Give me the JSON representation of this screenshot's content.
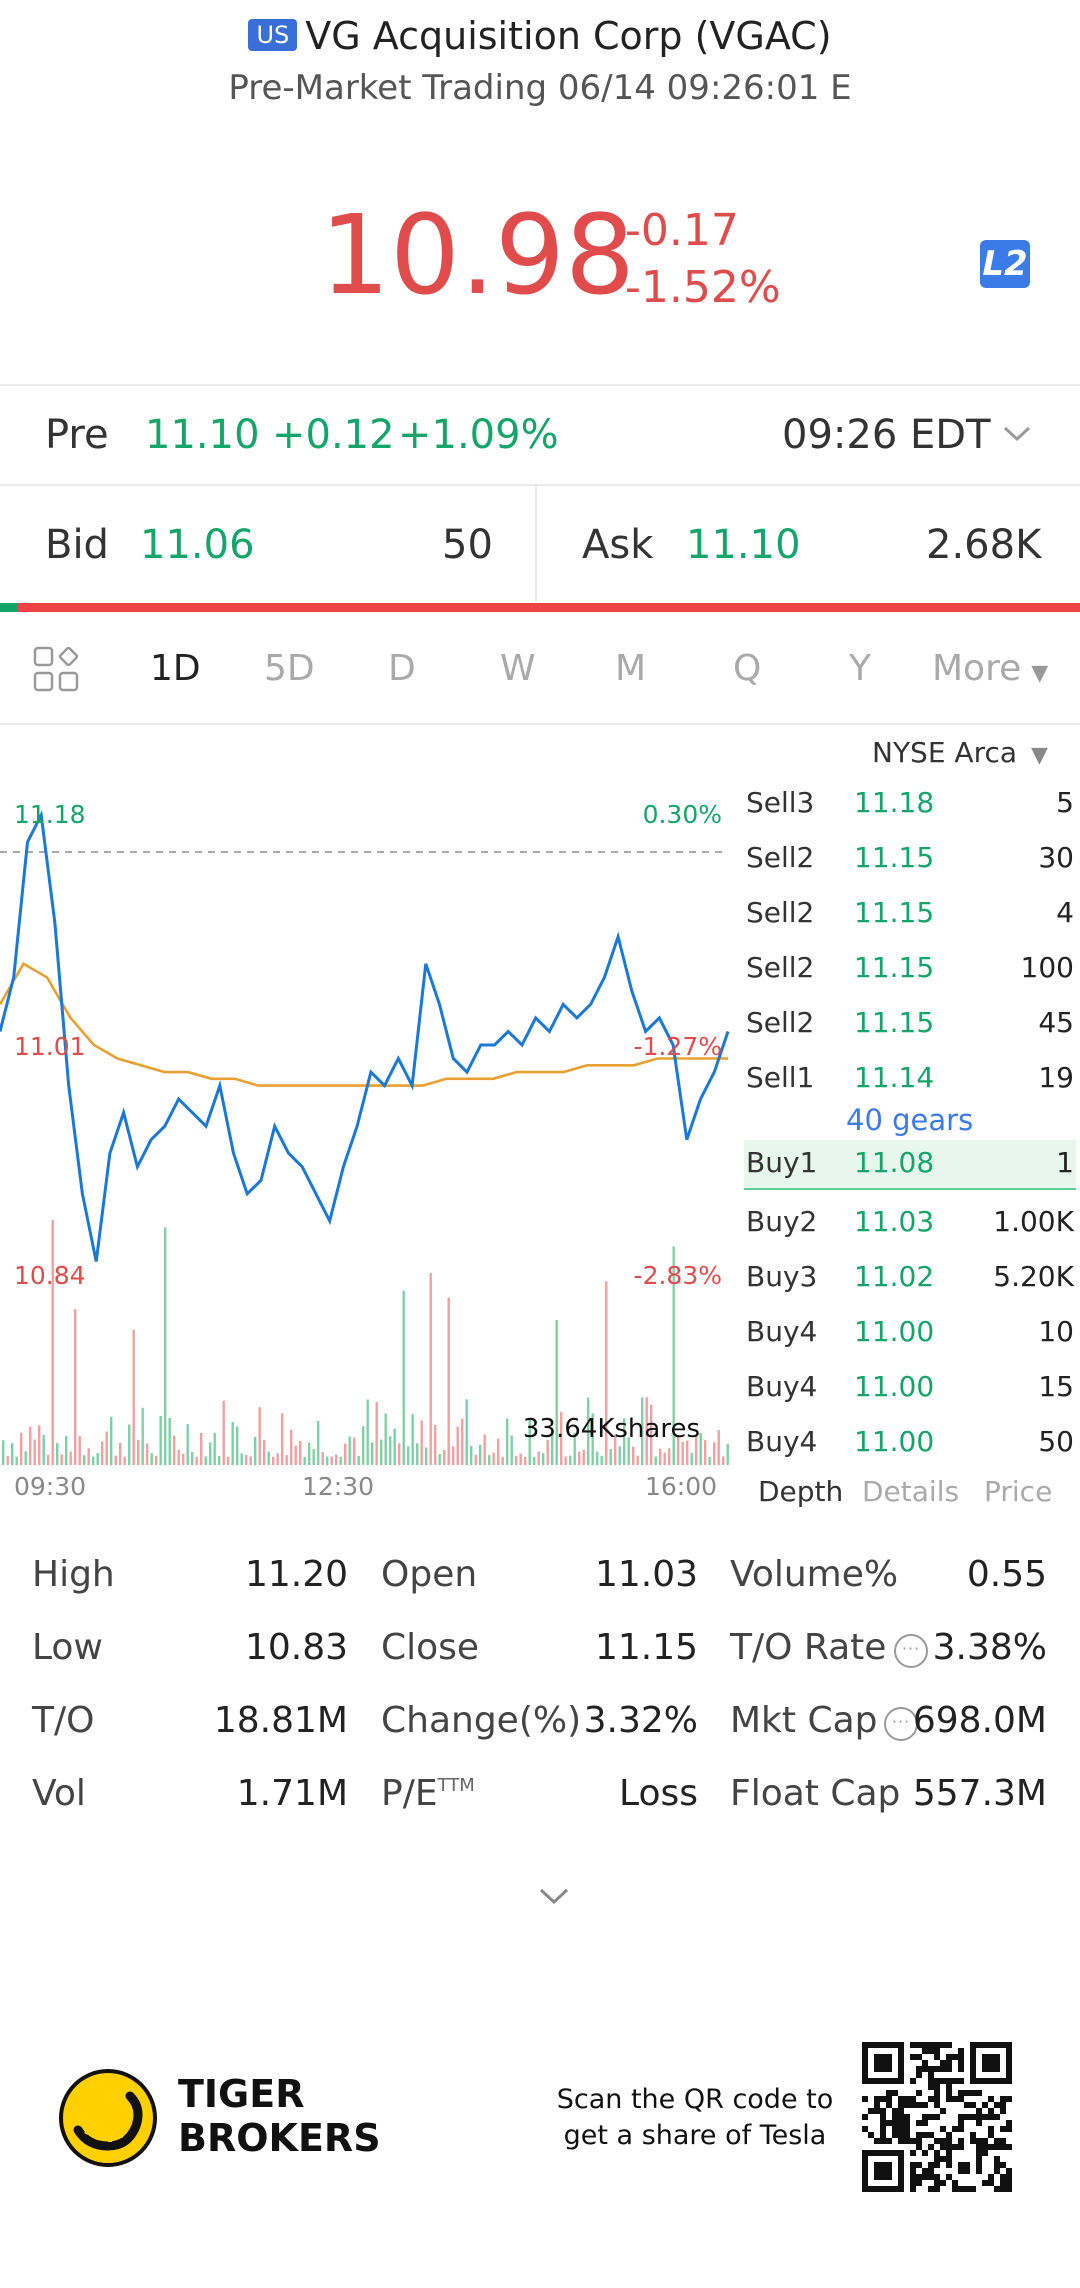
{
  "header": {
    "market_badge": "US",
    "title": "VG Acquisition Corp (VGAC)",
    "subtitle": "Pre-Market Trading 06/14 09:26:01 E",
    "price": "10.98",
    "change": "-0.17",
    "change_pct": "-1.52%",
    "level_badge": "L2"
  },
  "pre_market": {
    "label": "Pre",
    "price": "11.10",
    "change": "+0.12",
    "change_pct": "+1.09%",
    "time": "09:26 EDT"
  },
  "bid_ask": {
    "bid_label": "Bid",
    "bid_price": "11.06",
    "bid_size": "50",
    "ask_label": "Ask",
    "ask_price": "11.10",
    "ask_size": "2.68K"
  },
  "tabs": [
    "1D",
    "5D",
    "D",
    "W",
    "M",
    "Q",
    "Y",
    "More"
  ],
  "active_tab": "1D",
  "chart": {
    "high_label": "11.18",
    "high_pct": "0.30%",
    "mid_label": "11.01",
    "mid_pct": "-1.27%",
    "low_label": "10.84",
    "low_pct": "-2.83%",
    "volume_label": "33.64Kshares",
    "x_ticks": [
      "09:30",
      "12:30",
      "16:00"
    ]
  },
  "chart_data": {
    "type": "line",
    "title": "",
    "x_ticks": [
      "09:30",
      "12:30",
      "16:00"
    ],
    "ylim": [
      10.84,
      11.18
    ],
    "reference_line": 11.15,
    "series": [
      {
        "values": [
          11.02,
          11.06,
          11.16,
          11.18,
          11.1,
          10.98,
          10.9,
          10.85,
          10.93,
          10.96,
          10.92,
          10.94,
          10.95,
          10.97,
          10.96,
          10.95,
          10.98,
          10.93,
          10.9,
          10.91,
          10.95,
          10.93,
          10.92,
          10.9,
          10.88,
          10.92,
          10.95,
          10.99,
          10.98,
          11.0,
          10.98,
          11.07,
          11.04,
          11.0,
          10.99,
          11.01,
          11.01,
          11.02,
          11.01,
          11.03,
          11.02,
          11.04,
          11.03,
          11.04,
          11.06,
          11.09,
          11.05,
          11.02,
          11.03,
          11.01,
          10.94,
          10.97,
          10.99,
          11.02
        ]
      },
      {
        "values": [
          11.04,
          11.07,
          11.06,
          11.03,
          11.01,
          11.0,
          10.995,
          10.99,
          10.99,
          10.985,
          10.985,
          10.98,
          10.98,
          10.98,
          10.98,
          10.98,
          10.98,
          10.98,
          10.98,
          10.985,
          10.985,
          10.985,
          10.99,
          10.99,
          10.99,
          10.995,
          10.995,
          10.995,
          11.0,
          11.0,
          11.0,
          11.0
        ]
      }
    ]
  },
  "order_book": {
    "exchange": "NYSE Arca",
    "sells": [
      {
        "label": "Sell3",
        "price": "11.18",
        "qty": "5"
      },
      {
        "label": "Sell2",
        "price": "11.15",
        "qty": "30"
      },
      {
        "label": "Sell2",
        "price": "11.15",
        "qty": "4"
      },
      {
        "label": "Sell2",
        "price": "11.15",
        "qty": "100"
      },
      {
        "label": "Sell2",
        "price": "11.15",
        "qty": "45"
      },
      {
        "label": "Sell1",
        "price": "11.14",
        "qty": "19"
      }
    ],
    "gears": "40 gears",
    "buys": [
      {
        "label": "Buy1",
        "price": "11.08",
        "qty": "1"
      },
      {
        "label": "Buy2",
        "price": "11.03",
        "qty": "1.00K"
      },
      {
        "label": "Buy3",
        "price": "11.02",
        "qty": "5.20K"
      },
      {
        "label": "Buy4",
        "price": "11.00",
        "qty": "10"
      },
      {
        "label": "Buy4",
        "price": "11.00",
        "qty": "15"
      },
      {
        "label": "Buy4",
        "price": "11.00",
        "qty": "50"
      }
    ],
    "tabs": [
      "Depth",
      "Details",
      "Price"
    ]
  },
  "stats": {
    "high_k": "High",
    "high_v": "11.20",
    "low_k": "Low",
    "low_v": "10.83",
    "to_k": "T/O",
    "to_v": "18.81M",
    "vol_k": "Vol",
    "vol_v": "1.71M",
    "open_k": "Open",
    "open_v": "11.03",
    "close_k": "Close",
    "close_v": "11.15",
    "chg_k": "Change(%)",
    "chg_v": "3.32%",
    "pe_k": "P/E",
    "pe_sup": "TTM",
    "pe_v": "Loss",
    "volpct_k": "Volume%",
    "volpct_v": "0.55",
    "torate_k": "T/O Rate",
    "torate_v": "3.38%",
    "mktcap_k": "Mkt Cap",
    "mktcap_v": "698.0M",
    "floatcap_k": "Float Cap",
    "floatcap_v": "557.3M"
  },
  "footer": {
    "brand_line1": "TIGER",
    "brand_line2": "BROKERS",
    "scan_line1": "Scan the QR code to",
    "scan_line2": "get a share of Tesla"
  }
}
